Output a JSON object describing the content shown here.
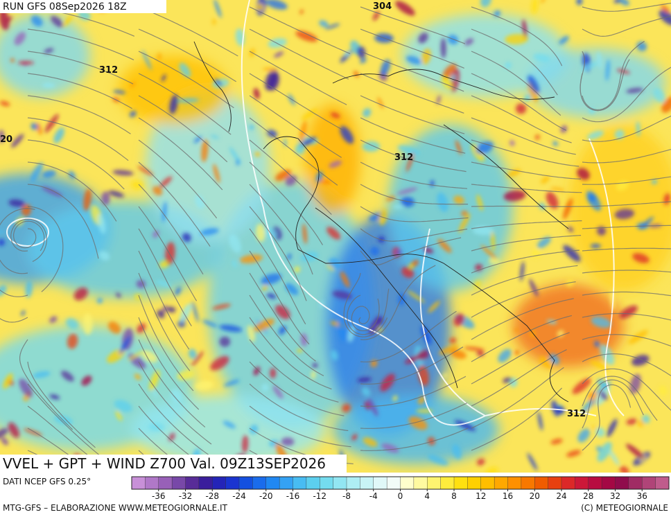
{
  "header": {
    "run": "RUN GFS 08Sep2026 18Z"
  },
  "map": {
    "contour_labels": [
      "304",
      "312",
      "312",
      "312",
      "20"
    ]
  },
  "footer": {
    "product": "VVEL + GPT + WIND Z700 Val. 09Z13SEP2026",
    "source": "DATI NCEP GFS 0.25°",
    "credit_left": "MTG-GFS – ELABORAZIONE WWW.METEOGIORNALE.IT",
    "credit_right": "(C) METEOGIORNALE"
  },
  "colorbar": {
    "colors": [
      "#c890d8",
      "#b078c8",
      "#9860b8",
      "#7848a8",
      "#582c98",
      "#3a1e9c",
      "#2424b8",
      "#1a34d0",
      "#1450e0",
      "#1a6cec",
      "#2088f2",
      "#34a2f4",
      "#48bcf2",
      "#5ccfee",
      "#74dcef",
      "#92e6f2",
      "#aeeef4",
      "#c8f4f6",
      "#e0f8f8",
      "#f2fcf8",
      "#ffffcc",
      "#fffaa0",
      "#fff470",
      "#ffec3c",
      "#ffe010",
      "#ffd000",
      "#ffbe00",
      "#ffa800",
      "#ff9000",
      "#f87800",
      "#f05c00",
      "#e84010",
      "#dc2828",
      "#cc1838",
      "#b80c40",
      "#a40844",
      "#900c4c",
      "#a02c64",
      "#b04478",
      "#c05c8c"
    ],
    "ticks": [
      -36,
      -32,
      -28,
      -24,
      -20,
      -16,
      -12,
      -8,
      -4,
      0,
      4,
      8,
      12,
      16,
      20,
      24,
      28,
      32,
      36
    ]
  }
}
